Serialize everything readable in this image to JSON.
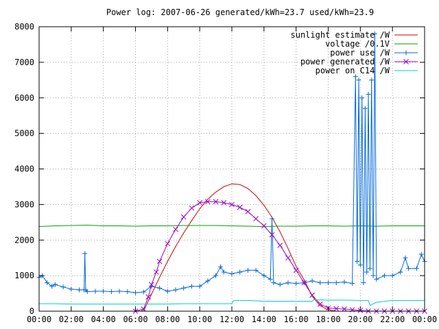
{
  "chart_data": {
    "type": "line",
    "title": "Power log: 2007-06-26 generated/kWh=23.7 used/kWh=23.9",
    "xlabel": "",
    "ylabel": "",
    "x_unit": "hours",
    "xlim": [
      0,
      24
    ],
    "ylim": [
      0,
      8000
    ],
    "grid": true,
    "legend_position": "top-right",
    "x_ticks": [
      {
        "value": 0,
        "label": "00:00"
      },
      {
        "value": 2,
        "label": "02:00"
      },
      {
        "value": 4,
        "label": "04:00"
      },
      {
        "value": 6,
        "label": "06:00"
      },
      {
        "value": 8,
        "label": "08:00"
      },
      {
        "value": 10,
        "label": "10:00"
      },
      {
        "value": 12,
        "label": "12:00"
      },
      {
        "value": 14,
        "label": "14:00"
      },
      {
        "value": 16,
        "label": "16:00"
      },
      {
        "value": 18,
        "label": "18:00"
      },
      {
        "value": 20,
        "label": "20:00"
      },
      {
        "value": 22,
        "label": "22:00"
      },
      {
        "value": 24,
        "label": "00:00"
      }
    ],
    "y_ticks": [
      {
        "value": 0,
        "label": "0"
      },
      {
        "value": 1000,
        "label": "1000"
      },
      {
        "value": 2000,
        "label": "2000"
      },
      {
        "value": 3000,
        "label": "3000"
      },
      {
        "value": 4000,
        "label": "4000"
      },
      {
        "value": 5000,
        "label": "5000"
      },
      {
        "value": 6000,
        "label": "6000"
      },
      {
        "value": 7000,
        "label": "7000"
      },
      {
        "value": 8000,
        "label": "8000"
      }
    ],
    "series": [
      {
        "name": "sunlight estimate /W",
        "color": "#cc0000",
        "marker": "none",
        "x": [
          6.5,
          7,
          7.5,
          8,
          8.5,
          9,
          9.5,
          10,
          10.5,
          11,
          11.5,
          12,
          12.5,
          13,
          13.5,
          14,
          14.5,
          15,
          15.5,
          16,
          16.5,
          17,
          17.5,
          18,
          18.5
        ],
        "y": [
          0,
          480,
          950,
          1400,
          1820,
          2200,
          2550,
          2880,
          3150,
          3350,
          3500,
          3580,
          3560,
          3450,
          3250,
          2980,
          2640,
          2230,
          1760,
          1260,
          880,
          420,
          150,
          40,
          0
        ]
      },
      {
        "name": "voltage /0.1V",
        "color": "#00a000",
        "marker": "none",
        "x": [
          0,
          1,
          2,
          3,
          4,
          5,
          6,
          7,
          8,
          9,
          10,
          11,
          12,
          13,
          14,
          15,
          16,
          17,
          18,
          19,
          20,
          21,
          22,
          23,
          24
        ],
        "y": [
          2380,
          2400,
          2410,
          2420,
          2400,
          2400,
          2390,
          2400,
          2400,
          2410,
          2410,
          2410,
          2400,
          2390,
          2380,
          2390,
          2390,
          2400,
          2400,
          2390,
          2400,
          2390,
          2400,
          2400,
          2400
        ]
      },
      {
        "name": "power use /W",
        "color": "#0066dd",
        "marker": "plus",
        "x": [
          0,
          0.2,
          0.5,
          0.8,
          1,
          1.5,
          2,
          2.5,
          2.8,
          2.85,
          2.9,
          3,
          3.5,
          4,
          4.5,
          5,
          5.5,
          6,
          6.5,
          7,
          7.5,
          8,
          8.5,
          9,
          9.5,
          10,
          10.5,
          11,
          11.3,
          11.5,
          12,
          12.5,
          13,
          13.5,
          14,
          14.4,
          14.5,
          14.6,
          15,
          15.5,
          16,
          16.5,
          17,
          17.5,
          18,
          18.5,
          19,
          19.5,
          19.7,
          19.8,
          19.9,
          20,
          20.1,
          20.2,
          20.3,
          20.4,
          20.5,
          20.6,
          20.7,
          20.8,
          20.9,
          21,
          21.5,
          22,
          22.5,
          22.8,
          23,
          23.5,
          23.8,
          24
        ],
        "y": [
          950,
          1000,
          800,
          700,
          750,
          680,
          620,
          600,
          600,
          1620,
          600,
          550,
          560,
          560,
          550,
          560,
          550,
          520,
          540,
          700,
          650,
          560,
          600,
          650,
          700,
          700,
          850,
          1000,
          1250,
          1100,
          1050,
          1100,
          1150,
          1150,
          1000,
          900,
          2600,
          800,
          750,
          800,
          780,
          800,
          850,
          800,
          800,
          800,
          820,
          780,
          6600,
          1400,
          6500,
          1300,
          6000,
          800,
          5700,
          1100,
          6100,
          1200,
          6500,
          1000,
          7800,
          900,
          1000,
          1000,
          1100,
          1500,
          1200,
          1200,
          1600,
          1400
        ]
      },
      {
        "name": "power generated /W",
        "color": "#9900cc",
        "marker": "cross",
        "x": [
          6,
          6.5,
          6.8,
          7,
          7.3,
          7.5,
          8,
          8.5,
          9,
          9.5,
          10,
          10.5,
          11,
          11.5,
          12,
          12.5,
          13,
          13.5,
          14,
          14.5,
          15,
          15.5,
          16,
          16.5,
          17,
          17.5,
          18,
          18.5,
          19,
          19.5,
          20,
          20.5,
          21,
          21.5,
          22,
          22.5,
          23,
          23.5,
          24
        ],
        "y": [
          0,
          60,
          400,
          750,
          1100,
          1400,
          1900,
          2300,
          2650,
          2900,
          3050,
          3080,
          3080,
          3050,
          3000,
          2920,
          2800,
          2600,
          2400,
          2150,
          1850,
          1500,
          1150,
          800,
          450,
          200,
          90,
          70,
          60,
          40,
          20,
          5,
          0,
          0,
          0,
          0,
          0,
          0,
          0
        ]
      },
      {
        "name": "power on C14 /W",
        "color": "#00cccc",
        "marker": "none",
        "x": [
          0,
          1,
          2,
          3,
          4,
          5,
          6,
          7,
          8,
          9,
          10,
          11,
          12,
          12.1,
          13,
          14,
          15,
          16,
          17,
          17.1,
          18,
          19,
          20,
          20.5,
          20.6,
          21,
          22,
          23,
          24
        ],
        "y": [
          210,
          210,
          200,
          200,
          200,
          200,
          200,
          200,
          200,
          210,
          210,
          210,
          210,
          300,
          300,
          280,
          280,
          280,
          280,
          320,
          310,
          310,
          300,
          300,
          160,
          250,
          300,
          300,
          300
        ]
      }
    ]
  }
}
